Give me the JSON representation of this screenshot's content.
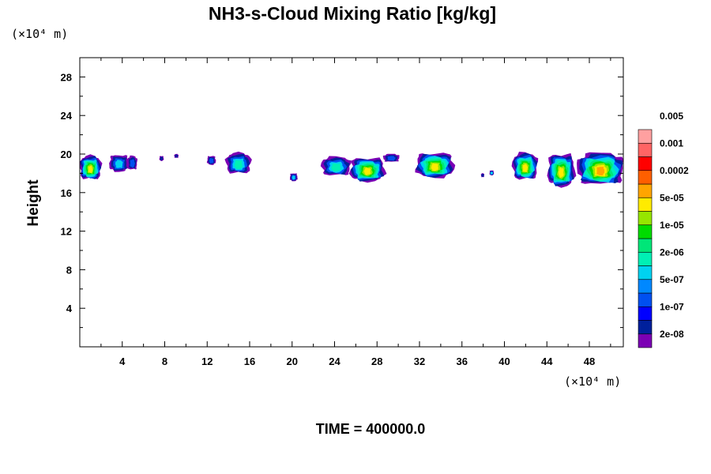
{
  "chart_data": {
    "type": "heatmap",
    "title": "NH3-s-Cloud Mixing Ratio [kg/kg]",
    "xlabel": "",
    "ylabel": "Height",
    "x_unit": "(×10⁴ m)",
    "y_unit": "(×10⁴ m)",
    "xlim": [
      0,
      51.2
    ],
    "ylim": [
      0,
      30
    ],
    "x_ticks": [
      4,
      8,
      12,
      16,
      20,
      24,
      28,
      32,
      36,
      40,
      44,
      48
    ],
    "y_ticks": [
      4,
      8,
      12,
      16,
      20,
      24,
      28
    ],
    "time_label": "TIME = 400000.0",
    "colorbar": {
      "levels": [
        "2e-08",
        "1e-07",
        "5e-07",
        "2e-06",
        "1e-05",
        "5e-05",
        "0.0002",
        "0.001",
        "0.005"
      ],
      "colors": [
        "#7b00b4",
        "#00209c",
        "#0000ff",
        "#0050f0",
        "#0088ff",
        "#00d2f0",
        "#00f0b4",
        "#00e678",
        "#00dc00",
        "#96e600",
        "#ffeb00",
        "#ffa500",
        "#ff5f00",
        "#ff0000",
        "#ff6464",
        "#ffa0a0"
      ]
    },
    "clouds": [
      {
        "x0": 0.0,
        "x1": 2.0,
        "top": 19.8,
        "bottom": 17.4,
        "peak": 10
      },
      {
        "x0": 2.8,
        "x1": 4.6,
        "top": 19.9,
        "bottom": 18.2,
        "peak": 5
      },
      {
        "x0": 4.5,
        "x1": 5.4,
        "top": 19.8,
        "bottom": 18.4,
        "peak": 4
      },
      {
        "x0": 7.5,
        "x1": 7.9,
        "top": 19.8,
        "bottom": 19.3,
        "peak": 1
      },
      {
        "x0": 8.9,
        "x1": 9.3,
        "top": 20.0,
        "bottom": 19.6,
        "peak": 1
      },
      {
        "x0": 12.0,
        "x1": 12.8,
        "top": 19.8,
        "bottom": 18.9,
        "peak": 3
      },
      {
        "x0": 13.8,
        "x1": 16.1,
        "top": 20.1,
        "bottom": 18.0,
        "peak": 6
      },
      {
        "x0": 19.8,
        "x1": 20.5,
        "top": 18.0,
        "bottom": 17.2,
        "peak": 5
      },
      {
        "x0": 22.8,
        "x1": 25.5,
        "top": 19.7,
        "bottom": 17.8,
        "peak": 6
      },
      {
        "x0": 25.5,
        "x1": 28.7,
        "top": 19.6,
        "bottom": 17.2,
        "peak": 10
      },
      {
        "x0": 28.6,
        "x1": 30.1,
        "top": 20.0,
        "bottom": 19.2,
        "peak": 3
      },
      {
        "x0": 31.7,
        "x1": 35.2,
        "top": 20.1,
        "bottom": 17.6,
        "peak": 10
      },
      {
        "x0": 37.8,
        "x1": 38.1,
        "top": 18.0,
        "bottom": 17.6,
        "peak": 1
      },
      {
        "x0": 38.6,
        "x1": 39.0,
        "top": 18.3,
        "bottom": 17.8,
        "peak": 5
      },
      {
        "x0": 40.8,
        "x1": 43.1,
        "top": 20.1,
        "bottom": 17.4,
        "peak": 10
      },
      {
        "x0": 44.1,
        "x1": 46.6,
        "top": 20.0,
        "bottom": 16.7,
        "peak": 10
      },
      {
        "x0": 46.9,
        "x1": 51.2,
        "top": 20.1,
        "bottom": 16.9,
        "peak": 11
      }
    ]
  }
}
